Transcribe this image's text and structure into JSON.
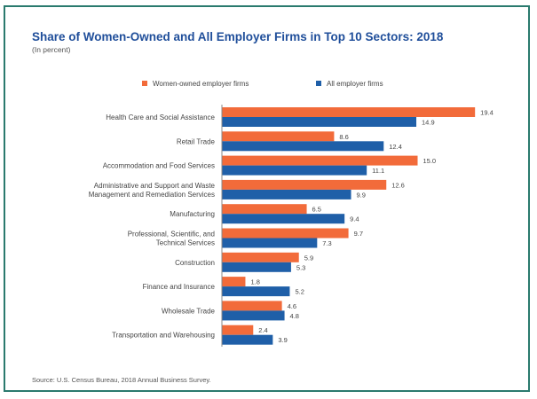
{
  "title": "Share of Women-Owned and All Employer Firms in Top 10 Sectors: 2018",
  "subtitle": "(In percent)",
  "source": "Source: U.S. Census Bureau, 2018 Annual Business Survey.",
  "colors": {
    "women": "#f26b3a",
    "all": "#1f5fa8",
    "frame": "#2a7a6e"
  },
  "chart_data": {
    "type": "bar",
    "orientation": "horizontal",
    "legend_position": "top",
    "grid": false,
    "categories": [
      [
        "Health Care and Social Assistance"
      ],
      [
        "Retail Trade"
      ],
      [
        "Accommodation and Food Services"
      ],
      [
        "Administrative and Support and Waste",
        "Management and Remediation Services"
      ],
      [
        "Manufacturing"
      ],
      [
        "Professional, Scientific, and",
        "Technical Services"
      ],
      [
        "Construction"
      ],
      [
        "Finance and Insurance"
      ],
      [
        "Wholesale Trade"
      ],
      [
        "Transportation and Warehousing"
      ]
    ],
    "series": [
      {
        "name": "Women-owned employer firms",
        "values": [
          19.4,
          8.6,
          15.0,
          12.6,
          6.5,
          9.7,
          5.9,
          1.8,
          4.6,
          2.4
        ],
        "labels": [
          "19.4",
          "8.6",
          "15.0",
          "12.6",
          "6.5",
          "9.7",
          "5.9",
          "1.8",
          "4.6",
          "2.4"
        ]
      },
      {
        "name": "All employer firms",
        "values": [
          14.9,
          12.4,
          11.1,
          9.9,
          9.4,
          7.3,
          5.3,
          5.2,
          4.8,
          3.9
        ],
        "labels": [
          "14.9",
          "12.4",
          "11.1",
          "9.9",
          "9.4",
          "7.3",
          "5.3",
          "5.2",
          "4.8",
          "3.9"
        ]
      }
    ]
  }
}
